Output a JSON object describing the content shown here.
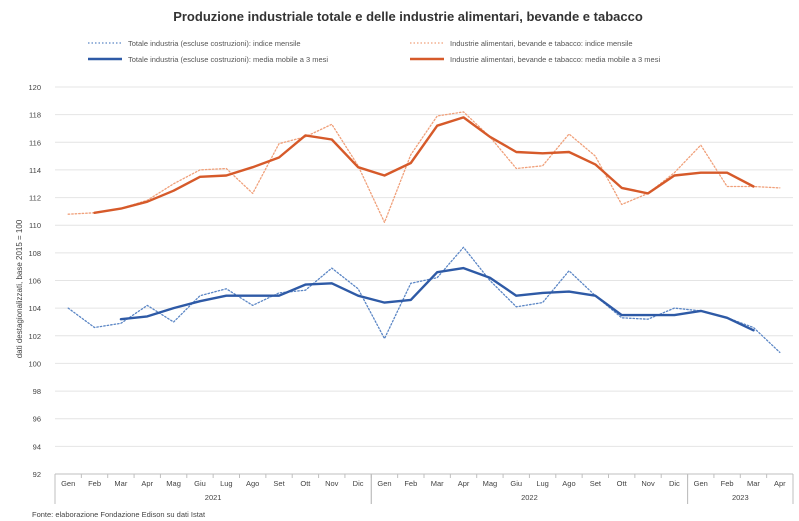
{
  "chart_data": {
    "type": "line",
    "title": "Produzione industriale totale e delle industrie alimentari, bevande e tabacco",
    "ylabel": "dati destagionalizzati, base 2015 = 100",
    "ylim": [
      92,
      120
    ],
    "yticks": [
      92,
      94,
      96,
      98,
      100,
      102,
      104,
      106,
      108,
      110,
      112,
      114,
      116,
      118,
      120
    ],
    "grid": "horizontal",
    "legend_position": "top",
    "categories": [
      "Gen",
      "Feb",
      "Mar",
      "Apr",
      "Mag",
      "Giu",
      "Lug",
      "Ago",
      "Set",
      "Ott",
      "Nov",
      "Dic",
      "Gen",
      "Feb",
      "Mar",
      "Apr",
      "Mag",
      "Giu",
      "Lug",
      "Ago",
      "Set",
      "Ott",
      "Nov",
      "Dic",
      "Gen",
      "Feb",
      "Mar",
      "Apr"
    ],
    "year_groups": [
      {
        "label": "2021",
        "start": 0,
        "end": 11
      },
      {
        "label": "2022",
        "start": 12,
        "end": 23
      },
      {
        "label": "2023",
        "start": 24,
        "end": 27
      }
    ],
    "series": [
      {
        "name": "Totale industria (escluse costruzioni): indice mensile",
        "color": "#5b86c5",
        "style": "dotted",
        "values": [
          104.0,
          102.6,
          102.9,
          104.2,
          103.0,
          104.9,
          105.4,
          104.2,
          105.1,
          105.3,
          106.9,
          105.4,
          101.8,
          105.8,
          106.2,
          108.4,
          106.0,
          104.1,
          104.4,
          106.7,
          104.9,
          103.3,
          103.2,
          104.0,
          103.8,
          103.3,
          102.6,
          100.8
        ]
      },
      {
        "name": "Totale industria (escluse costruzioni): media mobile a 3 mesi",
        "color": "#2e5aa6",
        "style": "solid",
        "values": [
          null,
          null,
          103.2,
          103.4,
          104.0,
          104.5,
          104.9,
          104.9,
          104.9,
          105.7,
          105.8,
          104.9,
          104.4,
          104.6,
          106.6,
          106.9,
          106.2,
          104.9,
          105.1,
          105.2,
          104.9,
          103.5,
          103.5,
          103.5,
          103.8,
          103.3,
          102.4,
          null
        ]
      },
      {
        "name": "Industrie alimentari, bevande e tabacco: indice mensile",
        "color": "#f0a07a",
        "style": "dotted",
        "values": [
          110.8,
          110.9,
          111.2,
          111.8,
          113.0,
          114.0,
          114.1,
          112.3,
          115.9,
          116.4,
          117.3,
          114.3,
          110.2,
          115.1,
          117.9,
          118.2,
          116.4,
          114.1,
          114.3,
          116.6,
          115.0,
          111.5,
          112.3,
          113.8,
          115.8,
          112.8,
          112.8,
          112.7
        ]
      },
      {
        "name": "Industrie alimentari, bevande e tabacco: media mobile a 3 mesi",
        "color": "#d65a2a",
        "style": "solid",
        "values": [
          null,
          110.9,
          111.2,
          111.7,
          112.5,
          113.5,
          113.6,
          114.2,
          114.9,
          116.5,
          116.2,
          114.2,
          113.6,
          114.5,
          117.2,
          117.8,
          116.4,
          115.3,
          115.2,
          115.3,
          114.4,
          112.7,
          112.3,
          113.6,
          113.8,
          113.8,
          112.8,
          null
        ]
      }
    ],
    "source": "Fonte: elaborazione Fondazione Edison su dati Istat"
  }
}
